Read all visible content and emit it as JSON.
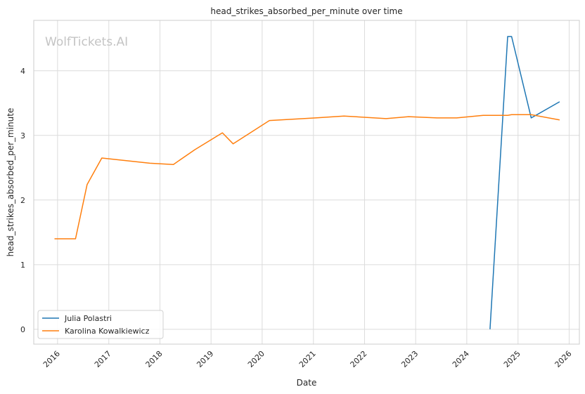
{
  "chart_data": {
    "type": "line",
    "title": "head_strikes_absorbed_per_minute over time",
    "xlabel": "Date",
    "ylabel": "head_strikes_absorbed_per_minute",
    "watermark": "WolfTickets.AI",
    "xlim": [
      "2015-07-15",
      "2026-03-15"
    ],
    "ylim": [
      -0.23,
      4.78
    ],
    "x_ticks": [
      "2016",
      "2017",
      "2018",
      "2019",
      "2020",
      "2021",
      "2022",
      "2023",
      "2024",
      "2025",
      "2026"
    ],
    "y_ticks": [
      0,
      1,
      2,
      3,
      4
    ],
    "grid": true,
    "legend_position": "bottom-left",
    "series": [
      {
        "name": "Julia Polastri",
        "color": "#1f77b4",
        "points": [
          {
            "x": "2024-06-15",
            "y": 0.0
          },
          {
            "x": "2024-10-19",
            "y": 4.53
          },
          {
            "x": "2024-11-16",
            "y": 4.53
          },
          {
            "x": "2025-04-05",
            "y": 3.27
          },
          {
            "x": "2025-10-25",
            "y": 3.52
          }
        ]
      },
      {
        "name": "Karolina Kowalkiewicz",
        "color": "#ff7f0e",
        "points": [
          {
            "x": "2015-12-10",
            "y": 1.4
          },
          {
            "x": "2016-05-08",
            "y": 1.4
          },
          {
            "x": "2016-07-30",
            "y": 2.24
          },
          {
            "x": "2016-11-12",
            "y": 2.65
          },
          {
            "x": "2017-10-21",
            "y": 2.57
          },
          {
            "x": "2018-04-07",
            "y": 2.55
          },
          {
            "x": "2018-09-08",
            "y": 2.78
          },
          {
            "x": "2019-03-23",
            "y": 3.04
          },
          {
            "x": "2019-06-08",
            "y": 2.87
          },
          {
            "x": "2020-02-22",
            "y": 3.23
          },
          {
            "x": "2021-01-16",
            "y": 3.27
          },
          {
            "x": "2021-08-07",
            "y": 3.3
          },
          {
            "x": "2022-06-04",
            "y": 3.26
          },
          {
            "x": "2022-11-12",
            "y": 3.29
          },
          {
            "x": "2023-06-03",
            "y": 3.27
          },
          {
            "x": "2023-10-21",
            "y": 3.27
          },
          {
            "x": "2024-04-27",
            "y": 3.31
          },
          {
            "x": "2024-10-19",
            "y": 3.31
          },
          {
            "x": "2024-11-16",
            "y": 3.32
          },
          {
            "x": "2025-04-05",
            "y": 3.32
          },
          {
            "x": "2025-10-25",
            "y": 3.24
          }
        ]
      }
    ]
  }
}
